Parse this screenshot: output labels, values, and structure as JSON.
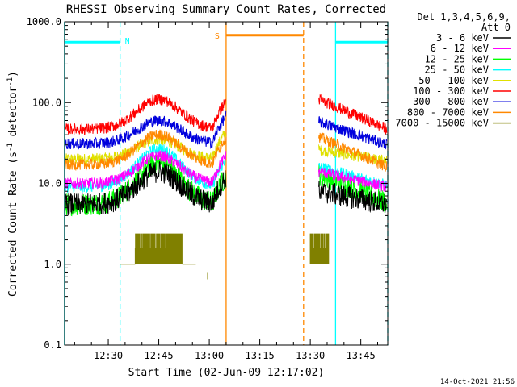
{
  "chart_data": {
    "type": "line",
    "title": "RHESSI Observing Summary Count Rates, Corrected",
    "xlabel": "Start Time (02-Jun-09 12:17:02)",
    "ylabel_pre": "Corrected Count Rate (s",
    "ylabel_sup1": "-1",
    "ylabel_mid": " detector",
    "ylabel_sup2": "-1",
    "ylabel_post": ")",
    "yscale": "log",
    "ylim": [
      0.1,
      1000
    ],
    "xlim": [
      "12:17:02",
      "13:53:00"
    ],
    "y_ticks": [
      {
        "value": 0.1,
        "label": "0.1"
      },
      {
        "value": 1,
        "label": "1.0"
      },
      {
        "value": 10,
        "label": "10.0"
      },
      {
        "value": 100,
        "label": "100.0"
      },
      {
        "value": 1000,
        "label": "1000.0"
      }
    ],
    "x_ticks": [
      {
        "time": "12:30",
        "label": "12:30"
      },
      {
        "time": "12:45",
        "label": "12:45"
      },
      {
        "time": "13:00",
        "label": "13:00"
      },
      {
        "time": "13:15",
        "label": "13:15"
      },
      {
        "time": "13:30",
        "label": "13:30"
      },
      {
        "time": "13:45",
        "label": "13:45"
      }
    ],
    "legend": {
      "position": "right",
      "header1": "Det 1,3,4,5,6,9,",
      "header2": "Att 0"
    },
    "series": [
      {
        "name": "3 - 6 keV",
        "color": "#000000",
        "base": 5.5,
        "peak": 14,
        "post_start": 8,
        "post_end": 5.5
      },
      {
        "name": "6 - 12 keV",
        "color": "#ff00ff",
        "base": 10,
        "peak": 22,
        "post_start": 14,
        "post_end": 9
      },
      {
        "name": "12 - 25 keV",
        "color": "#00ff00",
        "base": 5.5,
        "peak": 18,
        "post_start": 13,
        "post_end": 5.8
      },
      {
        "name": "25 - 50 keV",
        "color": "#00ffff",
        "base": 9,
        "peak": 27,
        "post_start": 16,
        "post_end": 9.5
      },
      {
        "name": "50 - 100 keV",
        "color": "#e0e000",
        "base": 20,
        "peak": 35,
        "post_start": 26,
        "post_end": 19
      },
      {
        "name": "100 - 300 keV",
        "color": "#ff0000",
        "base": 47,
        "peak": 110,
        "post_start": 110,
        "post_end": 47
      },
      {
        "name": "300 - 800 keV",
        "color": "#0000dd",
        "base": 31,
        "peak": 60,
        "post_start": 58,
        "post_end": 30
      },
      {
        "name": "800 - 7000 keV",
        "color": "#ff8800",
        "base": 17,
        "peak": 40,
        "post_start": 38,
        "post_end": 16
      },
      {
        "name": "7000 - 15000 keV",
        "color": "#808000",
        "base": 1,
        "peak": 2.4,
        "post_start": 2.4,
        "post_end": 1
      }
    ],
    "gaps": [
      {
        "start": "13:05:00",
        "end": "13:32:30"
      }
    ],
    "bursts": [
      {
        "start": "12:38:00",
        "end": "12:52:00",
        "low": 1.0,
        "high": 2.4
      },
      {
        "start": "13:30:00",
        "end": "13:35:30",
        "low": 1.0,
        "high": 2.4
      }
    ],
    "annotations": {
      "night_label": "N",
      "saa_label": "S",
      "night_color": "#00ffff",
      "saa_color": "#ff8800",
      "night_bars": [
        {
          "start": "12:17:02",
          "end": "12:33:30",
          "value": 560
        },
        {
          "start": "13:37:30",
          "end": "13:53:00",
          "value": 560
        }
      ],
      "saa_bar": {
        "start": "13:05:00",
        "end": "13:28:00",
        "value": 680
      },
      "vlines": [
        {
          "time": "12:17:00",
          "color": "#00ffff",
          "style": "solid"
        },
        {
          "time": "12:33:30",
          "color": "#00ffff",
          "style": "dashed"
        },
        {
          "time": "13:05:00",
          "color": "#ff8800",
          "style": "solid"
        },
        {
          "time": "13:28:00",
          "color": "#ff8800",
          "style": "dashed"
        },
        {
          "time": "13:37:30",
          "color": "#00ffff",
          "style": "solid"
        },
        {
          "time": "13:53:00",
          "color": "#00ffff",
          "style": "dashed"
        }
      ]
    },
    "timestamp": "14-Oct-2021 21:56"
  }
}
